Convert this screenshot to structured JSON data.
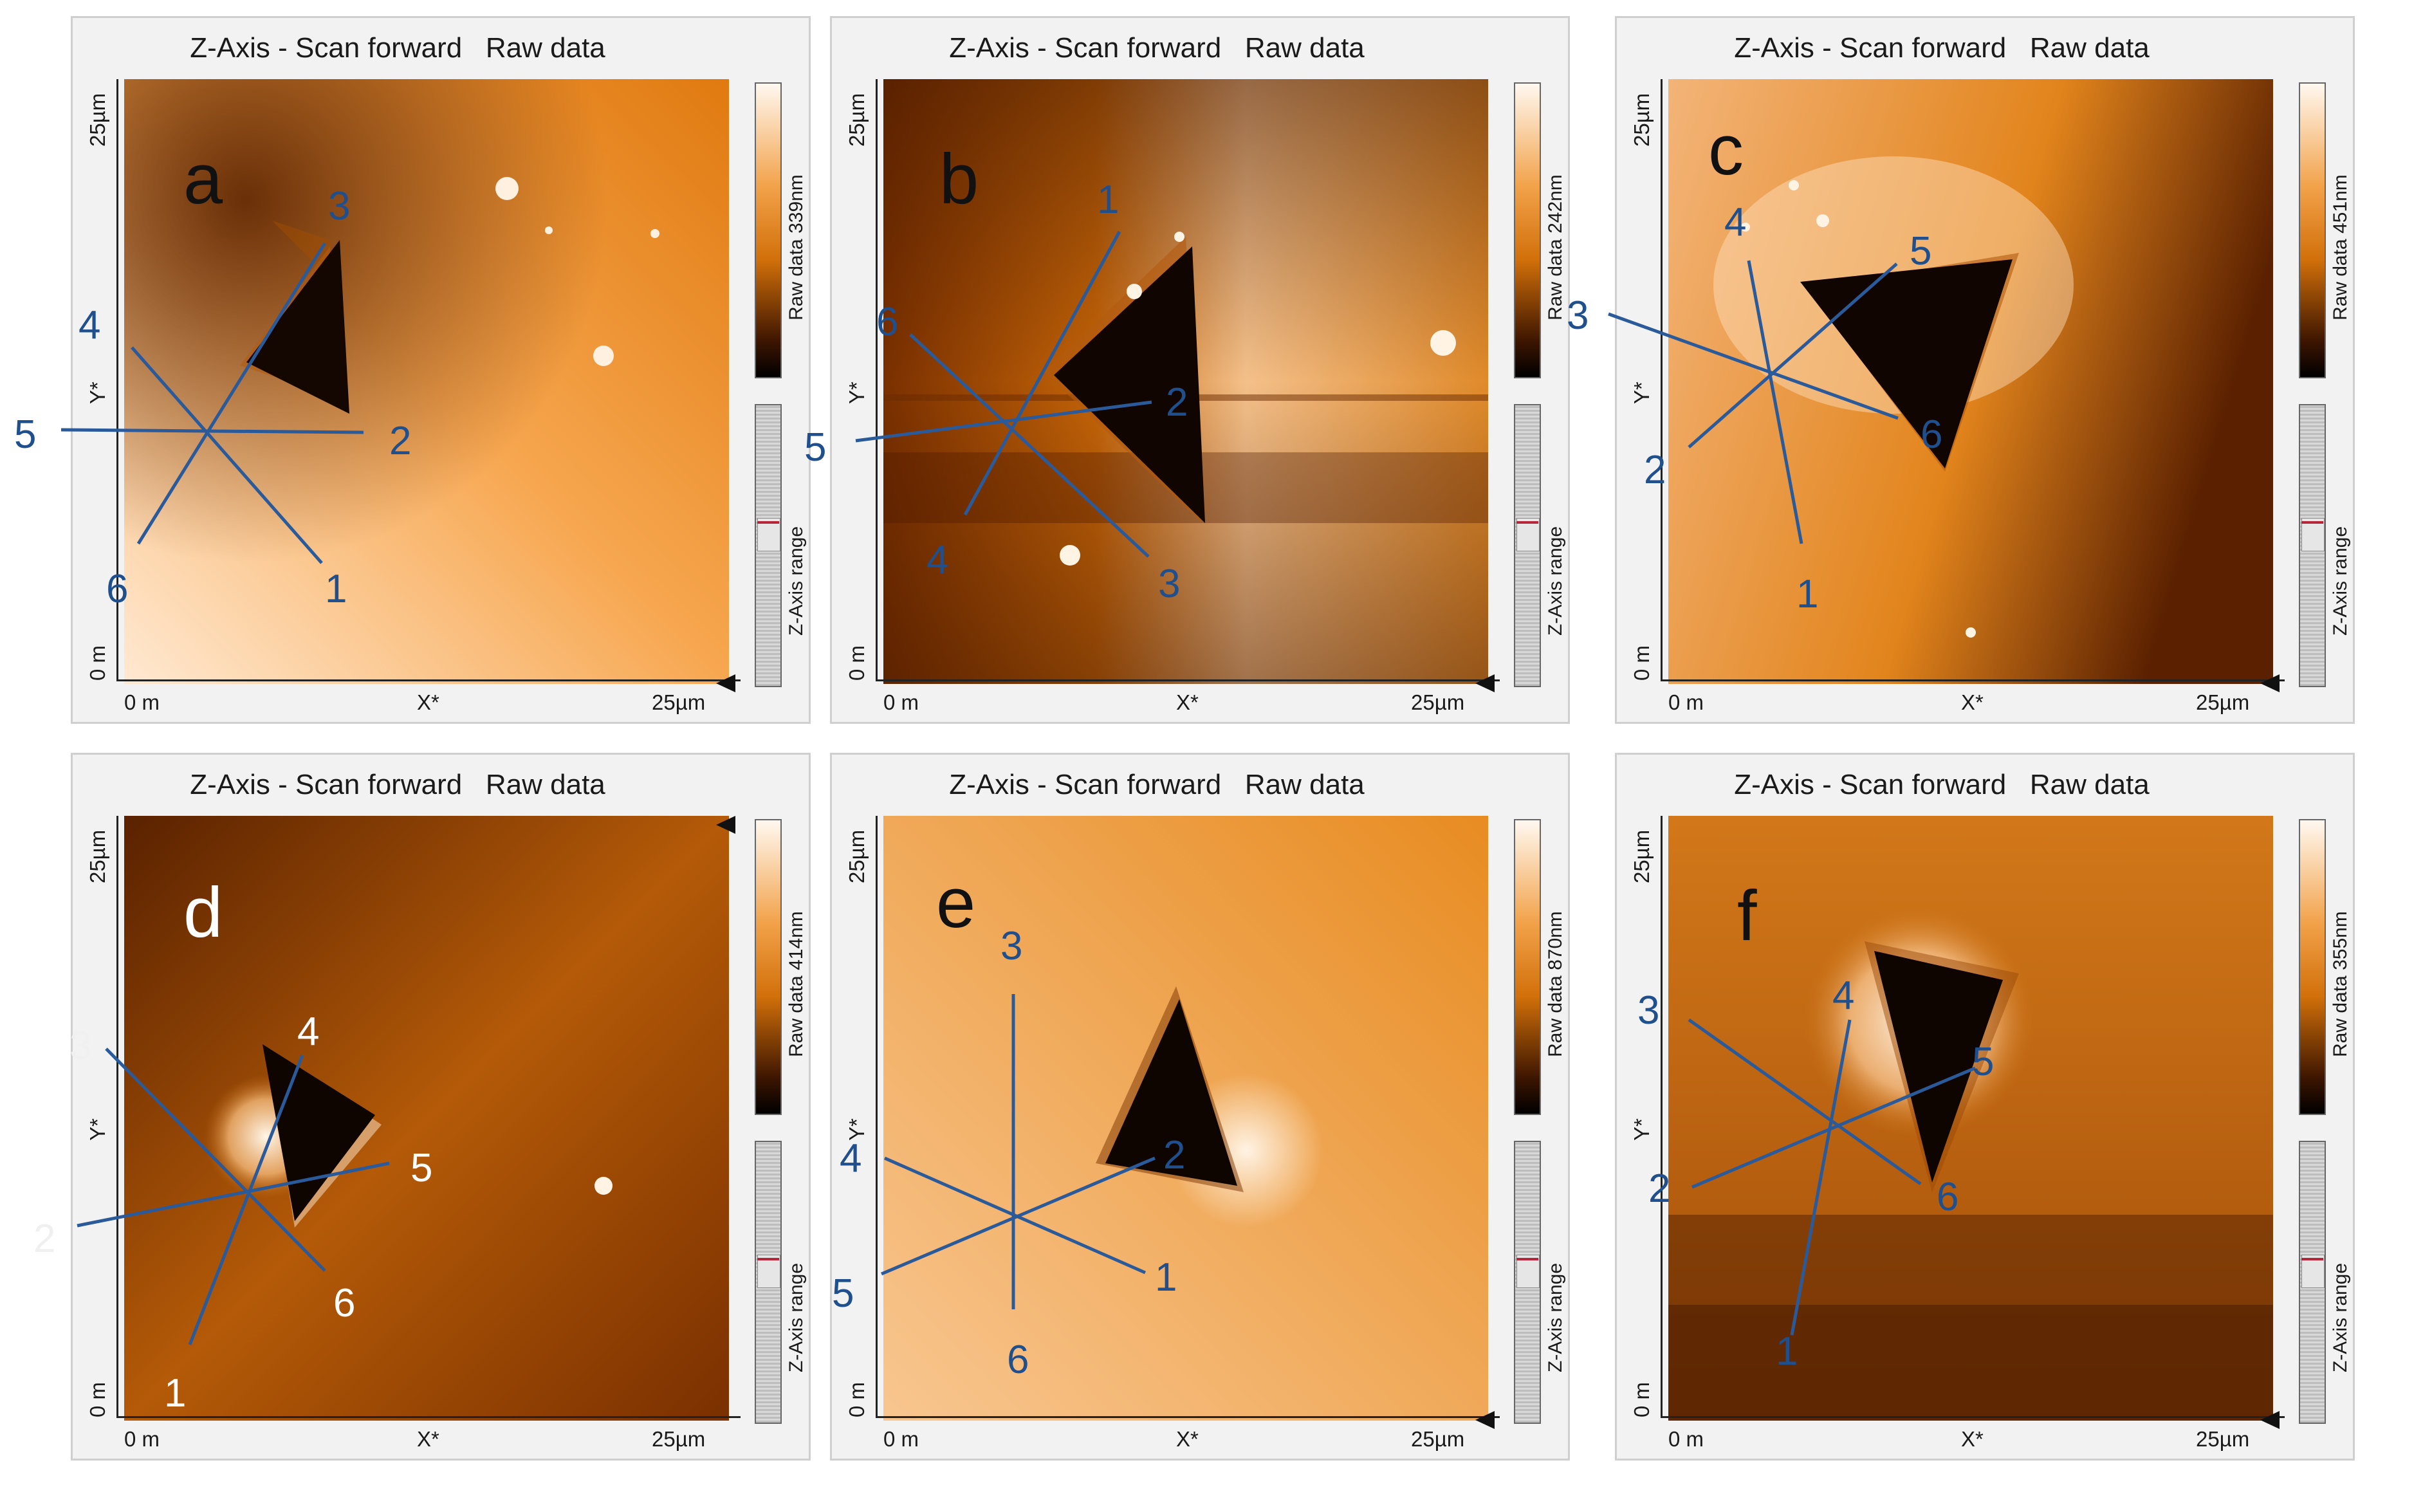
{
  "common": {
    "title": "Z-Axis - Scan forward   Raw data",
    "x_start": "0 m",
    "x_label": "X*",
    "x_end": "25µm",
    "y_start": "0 m",
    "y_label": "Y*",
    "y_end": "25µm",
    "range_label": "Z-Axis range"
  },
  "panels": [
    {
      "letter": "a",
      "zrange": "Raw data 339nm",
      "numbers": [
        "1",
        "2",
        "3",
        "4",
        "5",
        "6"
      ]
    },
    {
      "letter": "b",
      "zrange": "Raw data 242nm",
      "numbers": [
        "1",
        "2",
        "3",
        "4",
        "5",
        "6"
      ]
    },
    {
      "letter": "c",
      "zrange": "Raw data 451nm",
      "numbers": [
        "1",
        "2",
        "3",
        "4",
        "5",
        "6"
      ]
    },
    {
      "letter": "d",
      "zrange": "Raw data 414nm",
      "numbers": [
        "1",
        "2",
        "3",
        "4",
        "5",
        "6"
      ]
    },
    {
      "letter": "e",
      "zrange": "Raw data 870nm",
      "numbers": [
        "1",
        "2",
        "3",
        "4",
        "5",
        "6"
      ]
    },
    {
      "letter": "f",
      "zrange": "Raw data 355nm",
      "numbers": [
        "1",
        "2",
        "3",
        "4",
        "5",
        "6"
      ]
    }
  ],
  "colors": {
    "line": "#2a5a9a",
    "label": "#1f4f8c",
    "label_white": "#ffffff",
    "dark": "#120600",
    "bright": "#ffe6cc",
    "mid": "#e0800e"
  }
}
